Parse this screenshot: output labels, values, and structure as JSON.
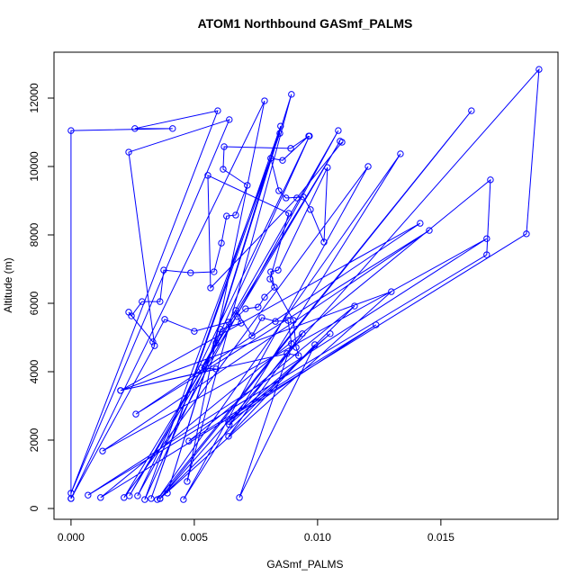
{
  "chart_data": {
    "type": "line",
    "title": "ATOM1 Northbound GASmf_PALMS",
    "x_label": "GASmf_PALMS",
    "y_label": "Altitude (m)",
    "color": "#0000ff",
    "marker": "open-circle",
    "xlim": [
      -0.00069,
      0.01975
    ],
    "ylim": [
      -316,
      13342
    ],
    "xticks": [
      {
        "value": 0,
        "label": "0.000"
      },
      {
        "value": 0.005,
        "label": "0.005"
      },
      {
        "value": 0.01,
        "label": "0.010"
      },
      {
        "value": 0.015,
        "label": "0.015"
      }
    ],
    "yticks": [
      0,
      2000,
      4000,
      6000,
      8000,
      10000,
      12000
    ],
    "x": [
      0,
      0,
      0.00412,
      0.00259,
      0.00595,
      0,
      0.00642,
      0.00234,
      0.00339,
      0,
      0.00785,
      0.00471,
      0.00894,
      0.00391,
      0.0085,
      0.00325,
      0.00847,
      0.00299,
      0.00967,
      0.0027,
      0.01084,
      0.00237,
      0.01091,
      0.00215,
      0.01205,
      0.00456,
      0.01336,
      0.0035,
      0.01624,
      0.00361,
      0.01898,
      0.01847,
      0.0012,
      0.01701,
      0.01686,
      0.00069,
      0.01686,
      0.00128,
      0.01453,
      0.00263,
      0.01416,
      0.00201,
      0.01299,
      0.00361,
      0.0115,
      0.00478,
      0.01237,
      0.00639,
      0.01051,
      0.00642,
      0.00938,
      0.00639,
      0.00989,
      0.00683,
      0.00894,
      0.0088,
      0.00829,
      0.00774,
      0.00734,
      0.00668,
      0.00639,
      0.005,
      0.0038,
      0.00332,
      0.00234,
      0.00245,
      0.00288,
      0.00361,
      0.00376,
      0.00485,
      0.0058,
      0.0061,
      0.00631,
      0.00668,
      0.00715,
      0.00617,
      0.00621,
      0.00891,
      0.00964,
      0.00858,
      0.0081,
      0.00843,
      0.00872,
      0.00942,
      0.00971,
      0.01026,
      0.0104,
      0.0084,
      0.0081,
      0.00825,
      0.00785,
      0.00759,
      0.00708,
      0.00675,
      0.0069,
      0.00606,
      0.00588,
      0.00529,
      0.00588,
      0.00201,
      0.00876,
      0.00923,
      0.00913,
      0.00902,
      0.00807,
      0.00883,
      0.00555,
      0.00566,
      0.00916,
      0.01099
    ],
    "values": [
      290,
      11050,
      11110,
      11110,
      11630,
      450,
      11370,
      10420,
      4760,
      290,
      11920,
      790,
      12110,
      450,
      11180,
      290,
      10970,
      260,
      10890,
      370,
      11050,
      370,
      10740,
      320,
      10000,
      260,
      10370,
      260,
      11630,
      290,
      12840,
      8030,
      320,
      9610,
      7420,
      390,
      7890,
      1680,
      8130,
      2760,
      8340,
      3450,
      6340,
      290,
      5920,
      1970,
      5370,
      2550,
      5110,
      2450,
      5110,
      2110,
      4790,
      320,
      4820,
      5500,
      5470,
      5580,
      5050,
      5790,
      5450,
      5180,
      5530,
      4870,
      5740,
      5630,
      6050,
      6050,
      6970,
      6890,
      6920,
      7760,
      8550,
      8580,
      9450,
      9920,
      10580,
      10530,
      10890,
      10180,
      10240,
      9290,
      9080,
      9110,
      8740,
      7790,
      9970,
      6970,
      6920,
      6470,
      6180,
      5890,
      5840,
      5610,
      5420,
      5240,
      4840,
      4110,
      4080,
      3450,
      4530,
      4470,
      4710,
      5500,
      6710,
      8630,
      9740,
      6450,
      9080,
      10710
    ]
  }
}
